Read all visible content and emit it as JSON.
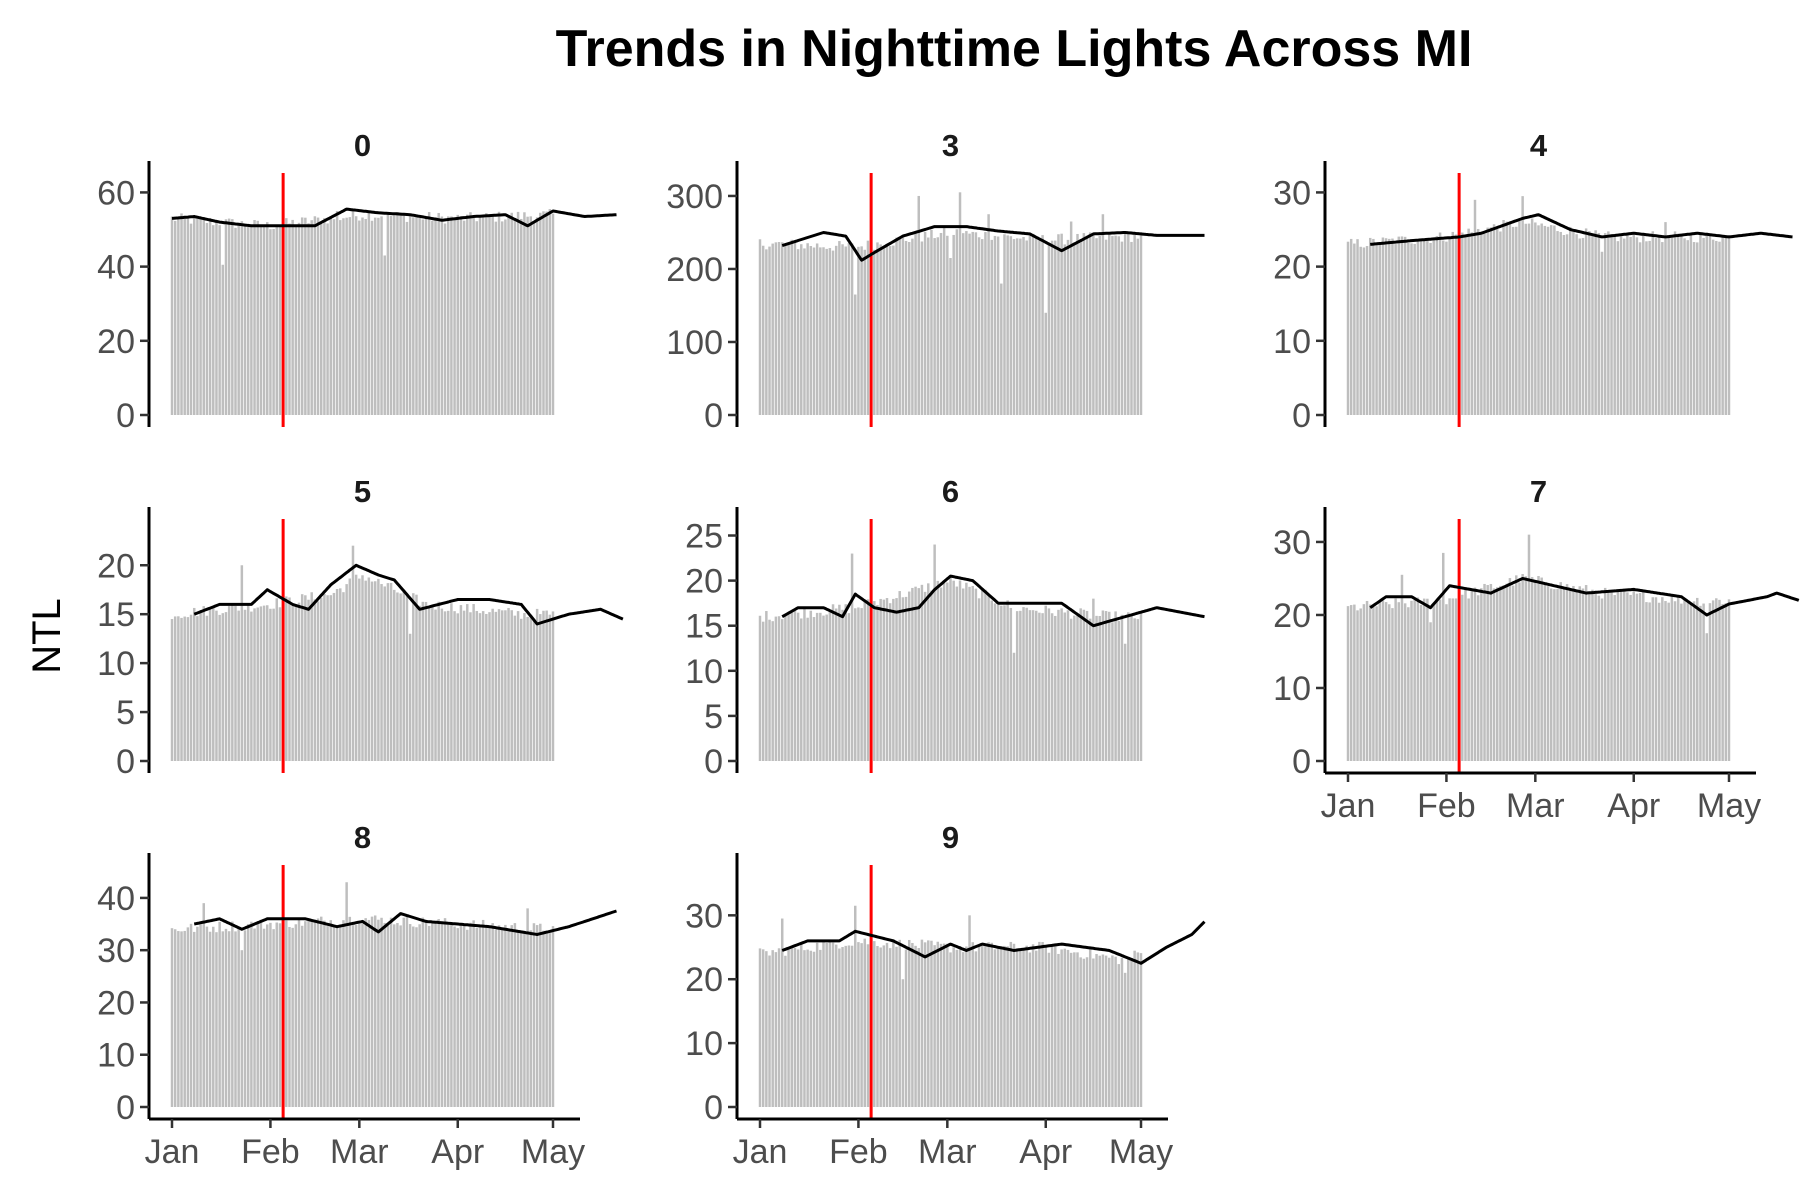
{
  "chart_data": {
    "type": "bar",
    "title": "Trends in Nighttime Lights Across MI",
    "ylabel": "NTL",
    "xlabel": "",
    "x_range": [
      "2023-01-01",
      "2023-05-01"
    ],
    "x_ticks": [
      {
        "date": "2023-01-01",
        "label": "Jan"
      },
      {
        "date": "2023-02-01",
        "label": "Feb"
      },
      {
        "date": "2023-03-01",
        "label": "Mar"
      },
      {
        "date": "2023-04-01",
        "label": "Apr"
      },
      {
        "date": "2023-05-01",
        "label": "May"
      }
    ],
    "event_date": "2023-02-05",
    "bar_color": "#bebebe",
    "line_color": "#000000",
    "event_color": "#ff0000",
    "grid": false,
    "facets": [
      {
        "label": "0",
        "ylim": [
          0,
          62
        ],
        "yticks": [
          0,
          20,
          40,
          60
        ],
        "mean": [
          [
            0,
            53
          ],
          [
            7,
            53.5
          ],
          [
            15,
            52
          ],
          [
            25,
            51
          ],
          [
            35,
            51
          ],
          [
            45,
            51
          ],
          [
            55,
            55.5
          ],
          [
            65,
            54.5
          ],
          [
            75,
            54
          ],
          [
            85,
            52.5
          ],
          [
            95,
            53.5
          ],
          [
            105,
            54
          ],
          [
            112,
            51
          ],
          [
            120,
            55
          ],
          [
            130,
            53.5
          ],
          [
            140,
            54
          ]
        ],
        "bars_base": [
          [
            0,
            53
          ],
          [
            30,
            51
          ],
          [
            60,
            54
          ],
          [
            90,
            53
          ],
          [
            120,
            54
          ],
          [
            140,
            54
          ]
        ],
        "bars_low": [
          [
            16,
            40.5
          ],
          [
            67,
            43
          ]
        ],
        "bars_high": [
          [
            52,
            55
          ],
          [
            144,
            60.5
          ]
        ]
      },
      {
        "label": "3",
        "ylim": [
          0,
          315
        ],
        "yticks": [
          0,
          100,
          200,
          300
        ],
        "mean": [
          [
            7,
            232
          ],
          [
            20,
            250
          ],
          [
            27,
            245
          ],
          [
            32,
            212
          ],
          [
            37,
            225
          ],
          [
            45,
            245
          ],
          [
            55,
            258
          ],
          [
            65,
            258
          ],
          [
            75,
            252
          ],
          [
            85,
            248
          ],
          [
            95,
            225
          ],
          [
            105,
            248
          ],
          [
            115,
            250
          ],
          [
            125,
            246
          ],
          [
            140,
            246
          ]
        ],
        "bars_base": [
          [
            0,
            235
          ],
          [
            30,
            230
          ],
          [
            60,
            250
          ],
          [
            90,
            240
          ],
          [
            120,
            245
          ],
          [
            140,
            245
          ]
        ],
        "bars_low": [
          [
            30,
            165
          ],
          [
            60,
            215
          ],
          [
            76,
            180
          ],
          [
            90,
            140
          ],
          [
            130,
            190
          ],
          [
            142,
            200
          ]
        ],
        "bars_high": [
          [
            50,
            300
          ],
          [
            63,
            305
          ],
          [
            72,
            275
          ],
          [
            98,
            265
          ],
          [
            108,
            275
          ],
          [
            138,
            290
          ]
        ]
      },
      {
        "label": "4",
        "ylim": [
          0,
          31
        ],
        "yticks": [
          0,
          10,
          20,
          30
        ],
        "mean": [
          [
            7,
            23
          ],
          [
            20,
            23.5
          ],
          [
            35,
            24
          ],
          [
            42,
            24.5
          ],
          [
            55,
            26.5
          ],
          [
            60,
            27
          ],
          [
            70,
            25
          ],
          [
            80,
            24
          ],
          [
            90,
            24.5
          ],
          [
            100,
            24
          ],
          [
            110,
            24.5
          ],
          [
            120,
            24
          ],
          [
            130,
            24.5
          ],
          [
            140,
            24
          ]
        ],
        "bars_base": [
          [
            0,
            23
          ],
          [
            30,
            24
          ],
          [
            55,
            26
          ],
          [
            80,
            24
          ],
          [
            110,
            24
          ],
          [
            140,
            24
          ]
        ],
        "bars_low": [
          [
            80,
            22
          ]
        ],
        "bars_high": [
          [
            40,
            29
          ],
          [
            55,
            29.5
          ],
          [
            100,
            26
          ],
          [
            138,
            28
          ]
        ]
      },
      {
        "label": "5",
        "ylim": [
          0,
          23.5
        ],
        "yticks": [
          0,
          5,
          10,
          15,
          20
        ],
        "mean": [
          [
            7,
            15
          ],
          [
            15,
            16
          ],
          [
            25,
            16
          ],
          [
            30,
            17.5
          ],
          [
            38,
            16
          ],
          [
            43,
            15.5
          ],
          [
            50,
            18
          ],
          [
            58,
            20
          ],
          [
            65,
            19
          ],
          [
            70,
            18.5
          ],
          [
            78,
            15.5
          ],
          [
            90,
            16.5
          ],
          [
            100,
            16.5
          ],
          [
            110,
            16
          ],
          [
            115,
            14
          ],
          [
            125,
            15
          ],
          [
            135,
            15.5
          ],
          [
            142,
            14.5
          ]
        ],
        "bars_base": [
          [
            0,
            15
          ],
          [
            30,
            16
          ],
          [
            50,
            17
          ],
          [
            60,
            19
          ],
          [
            80,
            16
          ],
          [
            110,
            15
          ],
          [
            142,
            15
          ]
        ],
        "bars_low": [
          [
            75,
            13
          ],
          [
            135,
            13
          ]
        ],
        "bars_high": [
          [
            22,
            20
          ],
          [
            57,
            22
          ],
          [
            130,
            18
          ]
        ]
      },
      {
        "label": "6",
        "ylim": [
          0,
          25.5
        ],
        "yticks": [
          0,
          5,
          10,
          15,
          20,
          25
        ],
        "mean": [
          [
            7,
            16
          ],
          [
            12,
            17
          ],
          [
            20,
            17
          ],
          [
            26,
            16
          ],
          [
            30,
            18.5
          ],
          [
            36,
            17
          ],
          [
            43,
            16.5
          ],
          [
            50,
            17
          ],
          [
            55,
            19
          ],
          [
            60,
            20.5
          ],
          [
            67,
            20
          ],
          [
            75,
            17.5
          ],
          [
            85,
            17.5
          ],
          [
            95,
            17.5
          ],
          [
            105,
            15
          ],
          [
            115,
            16
          ],
          [
            125,
            17
          ],
          [
            140,
            16
          ]
        ],
        "bars_base": [
          [
            0,
            16
          ],
          [
            30,
            17
          ],
          [
            60,
            20
          ],
          [
            80,
            17
          ],
          [
            110,
            16
          ],
          [
            140,
            16
          ]
        ],
        "bars_low": [
          [
            80,
            12
          ],
          [
            115,
            13
          ]
        ],
        "bars_high": [
          [
            29,
            23
          ],
          [
            55,
            24
          ],
          [
            105,
            18
          ]
        ]
      },
      {
        "label": "7",
        "ylim": [
          0,
          31.5
        ],
        "yticks": [
          0,
          10,
          20,
          30
        ],
        "mean": [
          [
            7,
            21
          ],
          [
            12,
            22.5
          ],
          [
            20,
            22.5
          ],
          [
            26,
            21
          ],
          [
            32,
            24
          ],
          [
            45,
            23
          ],
          [
            55,
            25
          ],
          [
            65,
            24
          ],
          [
            75,
            23
          ],
          [
            90,
            23.5
          ],
          [
            105,
            22.5
          ],
          [
            113,
            20
          ],
          [
            120,
            21.5
          ],
          [
            132,
            22.5
          ],
          [
            135,
            23
          ],
          [
            142,
            22
          ]
        ],
        "bars_base": [
          [
            0,
            21
          ],
          [
            30,
            22
          ],
          [
            55,
            25
          ],
          [
            80,
            23
          ],
          [
            110,
            22
          ],
          [
            140,
            22
          ]
        ],
        "bars_low": [
          [
            26,
            19
          ],
          [
            113,
            17.5
          ]
        ],
        "bars_high": [
          [
            17,
            25.5
          ],
          [
            30,
            28.5
          ],
          [
            57,
            31
          ],
          [
            133,
            26.5
          ]
        ]
      },
      {
        "label": "8",
        "ylim": [
          0,
          44
        ],
        "yticks": [
          0,
          10,
          20,
          30,
          40
        ],
        "mean": [
          [
            7,
            35
          ],
          [
            15,
            36
          ],
          [
            22,
            34
          ],
          [
            30,
            36
          ],
          [
            42,
            36
          ],
          [
            52,
            34.5
          ],
          [
            60,
            35.5
          ],
          [
            65,
            33.5
          ],
          [
            72,
            37
          ],
          [
            80,
            35.5
          ],
          [
            100,
            34.5
          ],
          [
            115,
            33
          ],
          [
            125,
            34.5
          ],
          [
            135,
            36.5
          ],
          [
            140,
            37.5
          ]
        ],
        "bars_base": [
          [
            0,
            34
          ],
          [
            30,
            35
          ],
          [
            60,
            36
          ],
          [
            90,
            35
          ],
          [
            120,
            34
          ],
          [
            140,
            37
          ]
        ],
        "bars_low": [
          [
            22,
            30
          ]
        ],
        "bars_high": [
          [
            10,
            39
          ],
          [
            55,
            43
          ],
          [
            112,
            38
          ],
          [
            136,
            41
          ]
        ]
      },
      {
        "label": "9",
        "ylim": [
          0,
          36
        ],
        "yticks": [
          0,
          10,
          20,
          30
        ],
        "mean": [
          [
            7,
            24.5
          ],
          [
            15,
            26
          ],
          [
            25,
            26
          ],
          [
            30,
            27.5
          ],
          [
            42,
            26
          ],
          [
            52,
            23.5
          ],
          [
            60,
            25.5
          ],
          [
            65,
            24.5
          ],
          [
            70,
            25.5
          ],
          [
            80,
            24.5
          ],
          [
            95,
            25.5
          ],
          [
            110,
            24.5
          ],
          [
            120,
            22.5
          ],
          [
            128,
            25
          ],
          [
            136,
            27
          ],
          [
            140,
            29
          ]
        ],
        "bars_base": [
          [
            0,
            24
          ],
          [
            30,
            26
          ],
          [
            60,
            25
          ],
          [
            90,
            25
          ],
          [
            115,
            23
          ],
          [
            140,
            29
          ]
        ],
        "bars_low": [
          [
            45,
            20
          ],
          [
            115,
            21
          ]
        ],
        "bars_high": [
          [
            7,
            29.5
          ],
          [
            30,
            31.5
          ],
          [
            66,
            30
          ],
          [
            135,
            34.5
          ]
        ]
      }
    ]
  }
}
